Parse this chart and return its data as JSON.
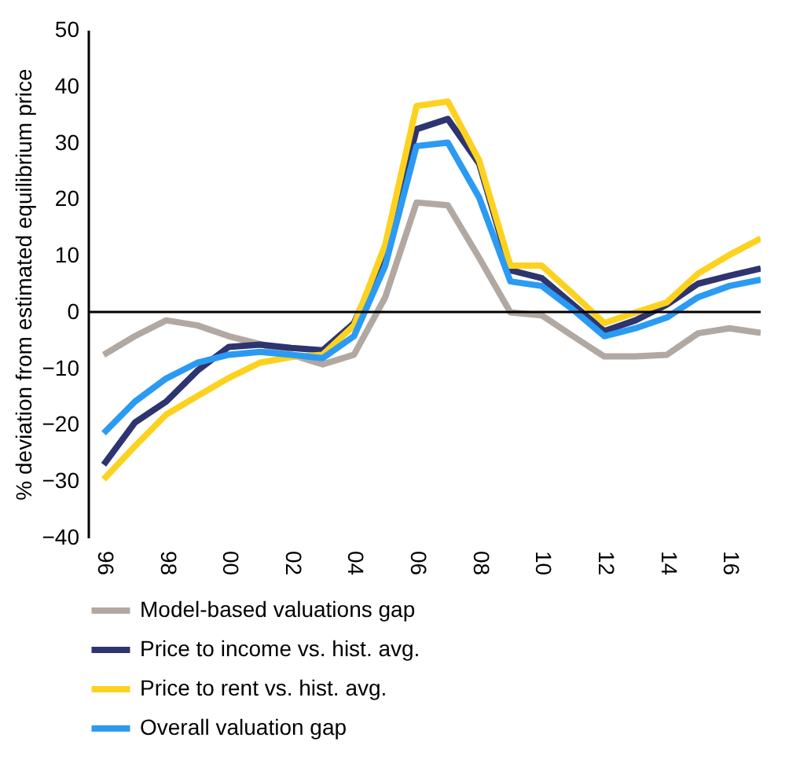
{
  "chart_data": {
    "type": "line",
    "ylabel": "% deviation from estimated equilibrium price",
    "x": [
      1996,
      1997,
      1998,
      1999,
      2000,
      2001,
      2002,
      2003,
      2004,
      2005,
      2006,
      2007,
      2008,
      2009,
      2010,
      2011,
      2012,
      2013,
      2014,
      2015,
      2016,
      2017
    ],
    "xlim": [
      1995.5,
      2017
    ],
    "xticks": [
      {
        "value": 1996,
        "label": "96"
      },
      {
        "value": 1998,
        "label": "98"
      },
      {
        "value": 2000,
        "label": "00"
      },
      {
        "value": 2002,
        "label": "02"
      },
      {
        "value": 2004,
        "label": "04"
      },
      {
        "value": 2006,
        "label": "06"
      },
      {
        "value": 2008,
        "label": "08"
      },
      {
        "value": 2010,
        "label": "10"
      },
      {
        "value": 2012,
        "label": "12"
      },
      {
        "value": 2014,
        "label": "14"
      },
      {
        "value": 2016,
        "label": "16"
      }
    ],
    "ylim": [
      -40,
      50
    ],
    "yticks": [
      -40,
      -30,
      -20,
      -10,
      0,
      10,
      20,
      30,
      40,
      50
    ],
    "series": [
      {
        "name": "Model-based valuations gap",
        "color": "#b2a8a2",
        "values": [
          -7.6,
          -4.3,
          -1.5,
          -2.4,
          -4.3,
          -5.7,
          -7.6,
          -9.3,
          -7.6,
          2.6,
          19.4,
          18.9,
          9.6,
          -0.1,
          -0.6,
          -4.3,
          -7.9,
          -7.9,
          -7.6,
          -3.8,
          -2.9,
          -3.7
        ]
      },
      {
        "name": "Price to income vs. hist. avg.",
        "color": "#2e3470",
        "values": [
          -27.1,
          -19.6,
          -15.9,
          -10.4,
          -6.2,
          -5.8,
          -6.4,
          -6.8,
          -2,
          10.2,
          32.4,
          34.2,
          26.3,
          7.4,
          6,
          1.3,
          -3.4,
          -1.5,
          1.3,
          5,
          6.4,
          7.7
        ]
      },
      {
        "name": "Price to rent vs. hist. avg.",
        "color": "#fdd21f",
        "values": [
          -29.7,
          -23.8,
          -18.2,
          -14.9,
          -11.7,
          -9,
          -8,
          -7.6,
          -2.4,
          11.9,
          36.5,
          37.3,
          26.9,
          8.2,
          8.2,
          3.2,
          -2,
          -0.1,
          1.7,
          6.8,
          10.1,
          13
        ]
      },
      {
        "name": "Overall valuation gap",
        "color": "#2b9af3",
        "values": [
          -21.5,
          -15.9,
          -11.8,
          -9,
          -7.6,
          -7.1,
          -7.6,
          -8.2,
          -4.3,
          8.2,
          29.4,
          30,
          20.3,
          5.4,
          4.6,
          0.4,
          -4.3,
          -2.9,
          -1,
          2.6,
          4.6,
          5.7
        ]
      }
    ],
    "ref_lines": [
      {
        "axis": "y",
        "value": 0,
        "color": "#000000"
      }
    ],
    "grid": false,
    "legend": "bottom",
    "line_style": "solid",
    "marker": "none"
  }
}
